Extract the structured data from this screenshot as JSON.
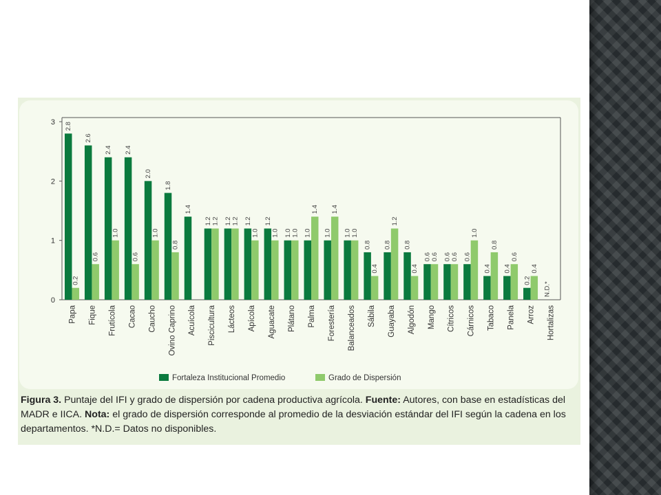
{
  "colors": {
    "primary": "#0b7a3e",
    "secondary": "#8fca6c"
  },
  "chart_data": {
    "type": "bar",
    "title": "",
    "xlabel": "",
    "ylabel": "",
    "ylim": [
      0,
      3
    ],
    "yticks": [
      "0",
      "1",
      "2",
      "3"
    ],
    "legend_position": "bottom",
    "categories": [
      "Papa",
      "Fique",
      "Frutícola",
      "Cacao",
      "Caucho",
      "Ovino Caprino",
      "Acuícola",
      "Piscicultura",
      "Lácteos",
      "Apícola",
      "Aguacate",
      "Plátano",
      "Palma",
      "Forestería",
      "Balanceados",
      "Sábila",
      "Guayaba",
      "Algodón",
      "Mango",
      "Cítricos",
      "Cárnicos",
      "Tabaco",
      "Panela",
      "Arroz",
      "Hortalizas"
    ],
    "series": [
      {
        "name": "Fortaleza Institucional Promedio",
        "values": [
          2.8,
          2.6,
          2.4,
          2.4,
          2.0,
          1.8,
          1.4,
          1.2,
          1.2,
          1.2,
          1.2,
          1.0,
          1.0,
          1.0,
          1.0,
          0.8,
          0.8,
          0.8,
          0.6,
          0.6,
          0.6,
          0.4,
          0.4,
          0.2,
          null
        ],
        "labels": [
          "2.8",
          "2.6",
          "2.4",
          "2.4",
          "2.0",
          "1.8",
          "1.4",
          "1.2",
          "1.2",
          "1.2",
          "1.2",
          "1.0",
          "1.0",
          "1.0",
          "1.0",
          "0.8",
          "0.8",
          "0.8",
          "0.6",
          "0.6",
          "0.6",
          "0.4",
          "0.4",
          "0.2",
          "N.D.*"
        ]
      },
      {
        "name": "Grado de Dispersión",
        "values": [
          0.2,
          0.6,
          1.0,
          0.6,
          1.0,
          0.8,
          null,
          1.2,
          1.2,
          1.0,
          1.0,
          1.0,
          1.4,
          1.4,
          1.0,
          0.4,
          1.2,
          0.4,
          0.6,
          0.6,
          1.0,
          0.8,
          0.6,
          0.4,
          null
        ],
        "labels": [
          "0.2",
          "0.6",
          "1.0",
          "0.6",
          "1.0",
          "0.8",
          "",
          "1.2",
          "1.2",
          "1.0",
          "1.0",
          "1.0",
          "1.4",
          "1.4",
          "1.0",
          "0.4",
          "1.2",
          "0.4",
          "0.6",
          "0.6",
          "1.0",
          "0.8",
          "0.6",
          "0.4",
          ""
        ]
      }
    ]
  },
  "caption": {
    "fig_label": "Figura 3.",
    "text1": " Puntaje del IFI y grado de dispersión por cadena productiva agrícola. ",
    "fuente_label": "Fuente:",
    "text2": " Autores, con base en estadísticas del MADR e IICA. ",
    "nota_label": "Nota:",
    "text3": " el grado de dispersión corresponde al promedio de la desviación estándar del IFI según la cadena en los departamentos. *N.D.= Datos no disponibles."
  }
}
